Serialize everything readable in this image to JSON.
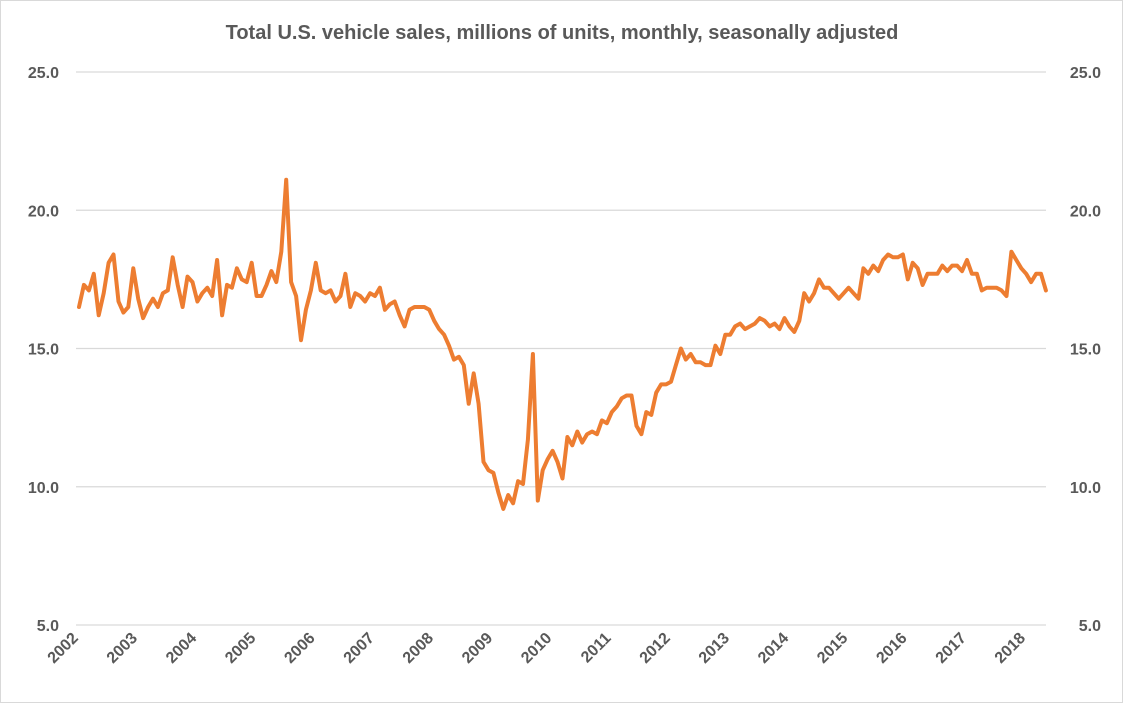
{
  "chart_data": {
    "type": "line",
    "title": "Total U.S. vehicle sales, millions of units, monthly, seasonally adjusted",
    "xlabel": "",
    "ylabel": "",
    "ylim": [
      5,
      25
    ],
    "yticks": [
      "5.0",
      "10.0",
      "15.0",
      "20.0",
      "25.0"
    ],
    "ytick_values": [
      5,
      10,
      15,
      20,
      25
    ],
    "x_tick_labels": [
      "2002",
      "2003",
      "2004",
      "2005",
      "2006",
      "2007",
      "2008",
      "2009",
      "2010",
      "2011",
      "2012",
      "2013",
      "2014",
      "2015",
      "2016",
      "2017",
      "2018"
    ],
    "start": "2002-01",
    "frequency": "monthly",
    "grid": true,
    "legend": "none",
    "series": [
      {
        "name": "Total U.S. vehicle sales",
        "color": "#ED7D31",
        "values": [
          16.5,
          17.3,
          17.1,
          17.7,
          16.2,
          17.0,
          18.1,
          18.4,
          16.7,
          16.3,
          16.5,
          17.9,
          16.8,
          16.1,
          16.5,
          16.8,
          16.5,
          17.0,
          17.1,
          18.3,
          17.3,
          16.5,
          17.6,
          17.4,
          16.7,
          17.0,
          17.2,
          16.9,
          18.2,
          16.2,
          17.3,
          17.2,
          17.9,
          17.5,
          17.4,
          18.1,
          16.9,
          16.9,
          17.3,
          17.8,
          17.4,
          18.5,
          21.1,
          17.4,
          16.9,
          15.3,
          16.4,
          17.1,
          18.1,
          17.1,
          17.0,
          17.1,
          16.7,
          16.9,
          17.7,
          16.5,
          17.0,
          16.9,
          16.7,
          17.0,
          16.9,
          17.2,
          16.4,
          16.6,
          16.7,
          16.2,
          15.8,
          16.4,
          16.5,
          16.5,
          16.5,
          16.4,
          16.0,
          15.7,
          15.5,
          15.1,
          14.6,
          14.7,
          14.4,
          13.0,
          14.1,
          13.0,
          10.9,
          10.6,
          10.5,
          9.8,
          9.2,
          9.7,
          9.4,
          10.2,
          10.1,
          11.7,
          14.8,
          9.5,
          10.6,
          11.0,
          11.3,
          10.9,
          10.3,
          11.8,
          11.5,
          12.0,
          11.6,
          11.9,
          12.0,
          11.9,
          12.4,
          12.3,
          12.7,
          12.9,
          13.2,
          13.3,
          13.3,
          12.2,
          11.9,
          12.7,
          12.6,
          13.4,
          13.7,
          13.7,
          13.8,
          14.4,
          15.0,
          14.6,
          14.8,
          14.5,
          14.5,
          14.4,
          14.4,
          15.1,
          14.8,
          15.5,
          15.5,
          15.8,
          15.9,
          15.7,
          15.8,
          15.9,
          16.1,
          16.0,
          15.8,
          15.9,
          15.7,
          16.1,
          15.8,
          15.6,
          16.0,
          17.0,
          16.7,
          17.0,
          17.5,
          17.2,
          17.2,
          17.0,
          16.8,
          17.0,
          17.2,
          17.0,
          16.8,
          17.9,
          17.7,
          18.0,
          17.8,
          18.2,
          18.4,
          18.3,
          18.3,
          18.4,
          17.5,
          18.1,
          17.9,
          17.3,
          17.7,
          17.7,
          17.7,
          18.0,
          17.8,
          18.0,
          18.0,
          17.8,
          18.2,
          17.7,
          17.7,
          17.1,
          17.2,
          17.2,
          17.2,
          17.1,
          16.9,
          18.5,
          18.2,
          17.9,
          17.7,
          17.4,
          17.7,
          17.7,
          17.1
        ]
      }
    ]
  }
}
